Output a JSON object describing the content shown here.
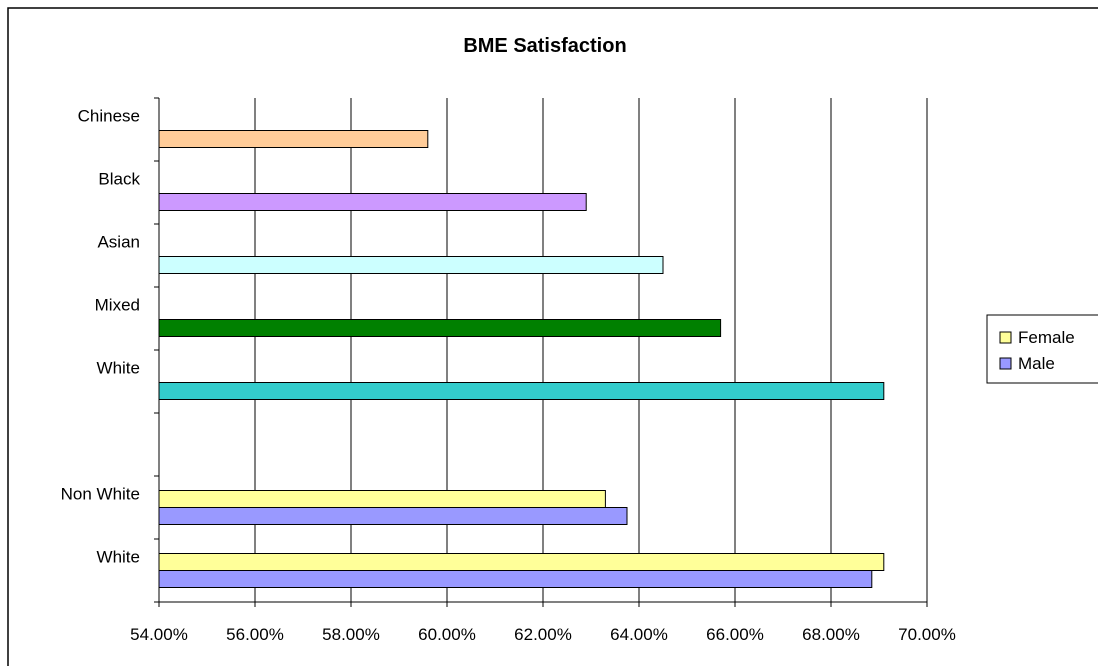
{
  "chart_data": {
    "type": "bar",
    "orientation": "horizontal",
    "title": "BME Satisfaction",
    "xlim": [
      0.54,
      0.7
    ],
    "x_tick_step": 0.02,
    "x_tick_labels": [
      "54.00%",
      "56.00%",
      "58.00%",
      "60.00%",
      "62.00%",
      "64.00%",
      "66.00%",
      "68.00%",
      "70.00%"
    ],
    "grid": "vertical",
    "legend_position": "right",
    "legend": [
      {
        "name": "Female",
        "color": "#FFFF99"
      },
      {
        "name": "Male",
        "color": "#9999FF"
      }
    ],
    "categories": [
      {
        "label": "Chinese",
        "bars": [
          {
            "value": 0.596,
            "color": "#FFCC99"
          }
        ]
      },
      {
        "label": "Black",
        "bars": [
          {
            "value": 0.629,
            "color": "#CC99FF"
          }
        ]
      },
      {
        "label": "Asian",
        "bars": [
          {
            "value": 0.645,
            "color": "#CCFFFF"
          }
        ]
      },
      {
        "label": "Mixed",
        "bars": [
          {
            "value": 0.657,
            "color": "#008000"
          }
        ]
      },
      {
        "label": "White",
        "bars": [
          {
            "value": 0.691,
            "color": "#33CCCC"
          }
        ]
      },
      {
        "label": "",
        "bars": []
      },
      {
        "label": "Non White",
        "bars": [
          {
            "series": "Female",
            "value": 0.633,
            "color": "#FFFF99"
          },
          {
            "series": "Male",
            "value": 0.6375,
            "color": "#9999FF"
          }
        ]
      },
      {
        "label": "White",
        "bars": [
          {
            "series": "Female",
            "value": 0.691,
            "color": "#FFFF99"
          },
          {
            "series": "Male",
            "value": 0.6885,
            "color": "#9999FF"
          }
        ]
      }
    ]
  }
}
